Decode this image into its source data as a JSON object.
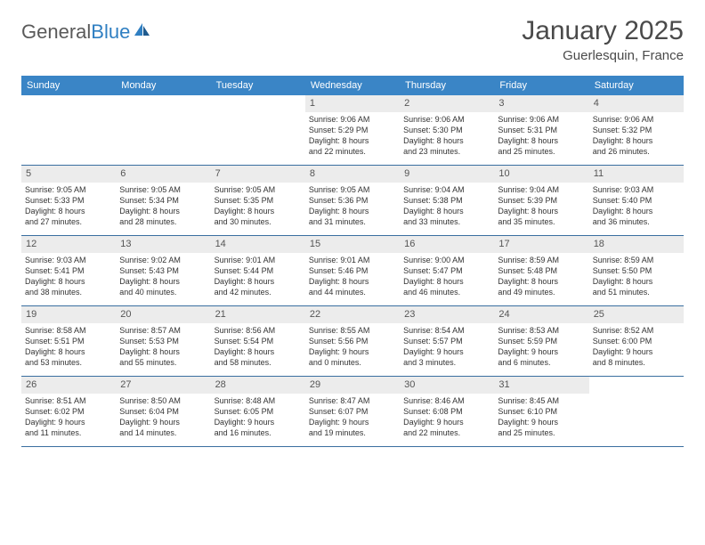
{
  "brand": {
    "part1": "General",
    "part2": "Blue"
  },
  "title": "January 2025",
  "location": "Guerlesquin, France",
  "colors": {
    "header_bg": "#3a85c6",
    "header_text": "#ffffff",
    "daynum_bg": "#ececec",
    "row_border": "#3a6fa0",
    "body_text": "#333333",
    "logo_gray": "#5a5a5a",
    "logo_blue": "#2f7fc2"
  },
  "weekdays": [
    "Sunday",
    "Monday",
    "Tuesday",
    "Wednesday",
    "Thursday",
    "Friday",
    "Saturday"
  ],
  "weeks": [
    [
      null,
      null,
      null,
      {
        "n": "1",
        "sr": "9:06 AM",
        "ss": "5:29 PM",
        "dh": "8",
        "dm": "22"
      },
      {
        "n": "2",
        "sr": "9:06 AM",
        "ss": "5:30 PM",
        "dh": "8",
        "dm": "23"
      },
      {
        "n": "3",
        "sr": "9:06 AM",
        "ss": "5:31 PM",
        "dh": "8",
        "dm": "25"
      },
      {
        "n": "4",
        "sr": "9:06 AM",
        "ss": "5:32 PM",
        "dh": "8",
        "dm": "26"
      }
    ],
    [
      {
        "n": "5",
        "sr": "9:05 AM",
        "ss": "5:33 PM",
        "dh": "8",
        "dm": "27"
      },
      {
        "n": "6",
        "sr": "9:05 AM",
        "ss": "5:34 PM",
        "dh": "8",
        "dm": "28"
      },
      {
        "n": "7",
        "sr": "9:05 AM",
        "ss": "5:35 PM",
        "dh": "8",
        "dm": "30"
      },
      {
        "n": "8",
        "sr": "9:05 AM",
        "ss": "5:36 PM",
        "dh": "8",
        "dm": "31"
      },
      {
        "n": "9",
        "sr": "9:04 AM",
        "ss": "5:38 PM",
        "dh": "8",
        "dm": "33"
      },
      {
        "n": "10",
        "sr": "9:04 AM",
        "ss": "5:39 PM",
        "dh": "8",
        "dm": "35"
      },
      {
        "n": "11",
        "sr": "9:03 AM",
        "ss": "5:40 PM",
        "dh": "8",
        "dm": "36"
      }
    ],
    [
      {
        "n": "12",
        "sr": "9:03 AM",
        "ss": "5:41 PM",
        "dh": "8",
        "dm": "38"
      },
      {
        "n": "13",
        "sr": "9:02 AM",
        "ss": "5:43 PM",
        "dh": "8",
        "dm": "40"
      },
      {
        "n": "14",
        "sr": "9:01 AM",
        "ss": "5:44 PM",
        "dh": "8",
        "dm": "42"
      },
      {
        "n": "15",
        "sr": "9:01 AM",
        "ss": "5:46 PM",
        "dh": "8",
        "dm": "44"
      },
      {
        "n": "16",
        "sr": "9:00 AM",
        "ss": "5:47 PM",
        "dh": "8",
        "dm": "46"
      },
      {
        "n": "17",
        "sr": "8:59 AM",
        "ss": "5:48 PM",
        "dh": "8",
        "dm": "49"
      },
      {
        "n": "18",
        "sr": "8:59 AM",
        "ss": "5:50 PM",
        "dh": "8",
        "dm": "51"
      }
    ],
    [
      {
        "n": "19",
        "sr": "8:58 AM",
        "ss": "5:51 PM",
        "dh": "8",
        "dm": "53"
      },
      {
        "n": "20",
        "sr": "8:57 AM",
        "ss": "5:53 PM",
        "dh": "8",
        "dm": "55"
      },
      {
        "n": "21",
        "sr": "8:56 AM",
        "ss": "5:54 PM",
        "dh": "8",
        "dm": "58"
      },
      {
        "n": "22",
        "sr": "8:55 AM",
        "ss": "5:56 PM",
        "dh": "9",
        "dm": "0"
      },
      {
        "n": "23",
        "sr": "8:54 AM",
        "ss": "5:57 PM",
        "dh": "9",
        "dm": "3"
      },
      {
        "n": "24",
        "sr": "8:53 AM",
        "ss": "5:59 PM",
        "dh": "9",
        "dm": "6"
      },
      {
        "n": "25",
        "sr": "8:52 AM",
        "ss": "6:00 PM",
        "dh": "9",
        "dm": "8"
      }
    ],
    [
      {
        "n": "26",
        "sr": "8:51 AM",
        "ss": "6:02 PM",
        "dh": "9",
        "dm": "11"
      },
      {
        "n": "27",
        "sr": "8:50 AM",
        "ss": "6:04 PM",
        "dh": "9",
        "dm": "14"
      },
      {
        "n": "28",
        "sr": "8:48 AM",
        "ss": "6:05 PM",
        "dh": "9",
        "dm": "16"
      },
      {
        "n": "29",
        "sr": "8:47 AM",
        "ss": "6:07 PM",
        "dh": "9",
        "dm": "19"
      },
      {
        "n": "30",
        "sr": "8:46 AM",
        "ss": "6:08 PM",
        "dh": "9",
        "dm": "22"
      },
      {
        "n": "31",
        "sr": "8:45 AM",
        "ss": "6:10 PM",
        "dh": "9",
        "dm": "25"
      },
      null
    ]
  ],
  "labels": {
    "sunrise": "Sunrise:",
    "sunset": "Sunset:",
    "daylight": "Daylight:",
    "hours": "hours",
    "and": "and",
    "minutes": "minutes."
  }
}
